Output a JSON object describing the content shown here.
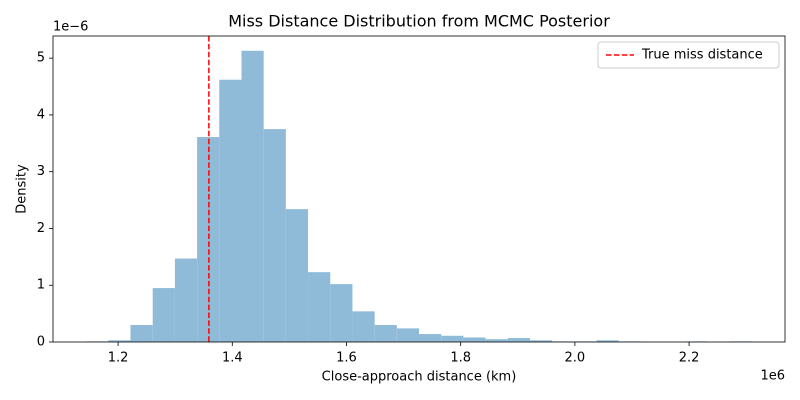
{
  "chart_data": {
    "type": "histogram",
    "title": "Miss Distance Distribution from MCMC Posterior",
    "x_label": "Close-approach distance (km)",
    "y_label": "Density",
    "x_offset_label": "1e6",
    "y_offset_label": "1e−6",
    "color": "#8fbbd9",
    "bins": [
      1144000,
      1182870,
      1221740,
      1260610,
      1299480,
      1338350,
      1377220,
      1416090,
      1454960,
      1493830,
      1532700,
      1571570,
      1610440,
      1649310,
      1688180,
      1727050,
      1765920,
      1804790,
      1843660,
      1882530,
      1921400,
      1960270,
      1999140,
      2038010,
      2076880,
      2115750,
      2154620,
      2193490,
      2232360,
      2271230,
      2310100
    ],
    "values": [
      1e-08,
      3e-08,
      3e-07,
      9.5e-07,
      1.47e-06,
      3.61e-06,
      4.62e-06,
      5.13e-06,
      3.75e-06,
      2.34e-06,
      1.23e-06,
      1.02e-06,
      5.4e-07,
      3e-07,
      2.4e-07,
      1.4e-07,
      1.1e-07,
      8e-08,
      5e-08,
      7e-08,
      3e-08,
      1e-08,
      1e-08,
      3e-08,
      1e-08,
      0,
      0,
      1e-08,
      0,
      1e-08
    ],
    "vline": {
      "x": 1359000,
      "name": "True miss distance",
      "color": "#ff0000"
    },
    "legend": "upper right",
    "xlim": [
      1086000,
      2368000
    ],
    "ylim": [
      0,
      5.39e-06
    ],
    "xticks": [
      {
        "value": 1200000,
        "label": "1.2"
      },
      {
        "value": 1400000,
        "label": "1.4"
      },
      {
        "value": 1600000,
        "label": "1.6"
      },
      {
        "value": 1800000,
        "label": "1.8"
      },
      {
        "value": 2000000,
        "label": "2.0"
      },
      {
        "value": 2200000,
        "label": "2.2"
      }
    ],
    "yticks": [
      0,
      {
        "value": 1e-06,
        "label": "1"
      },
      {
        "value": 2e-06,
        "label": "2"
      },
      {
        "value": 3e-06,
        "label": "3"
      },
      {
        "value": 4e-06,
        "label": "4"
      },
      {
        "value": 5e-06,
        "label": "5"
      }
    ]
  }
}
